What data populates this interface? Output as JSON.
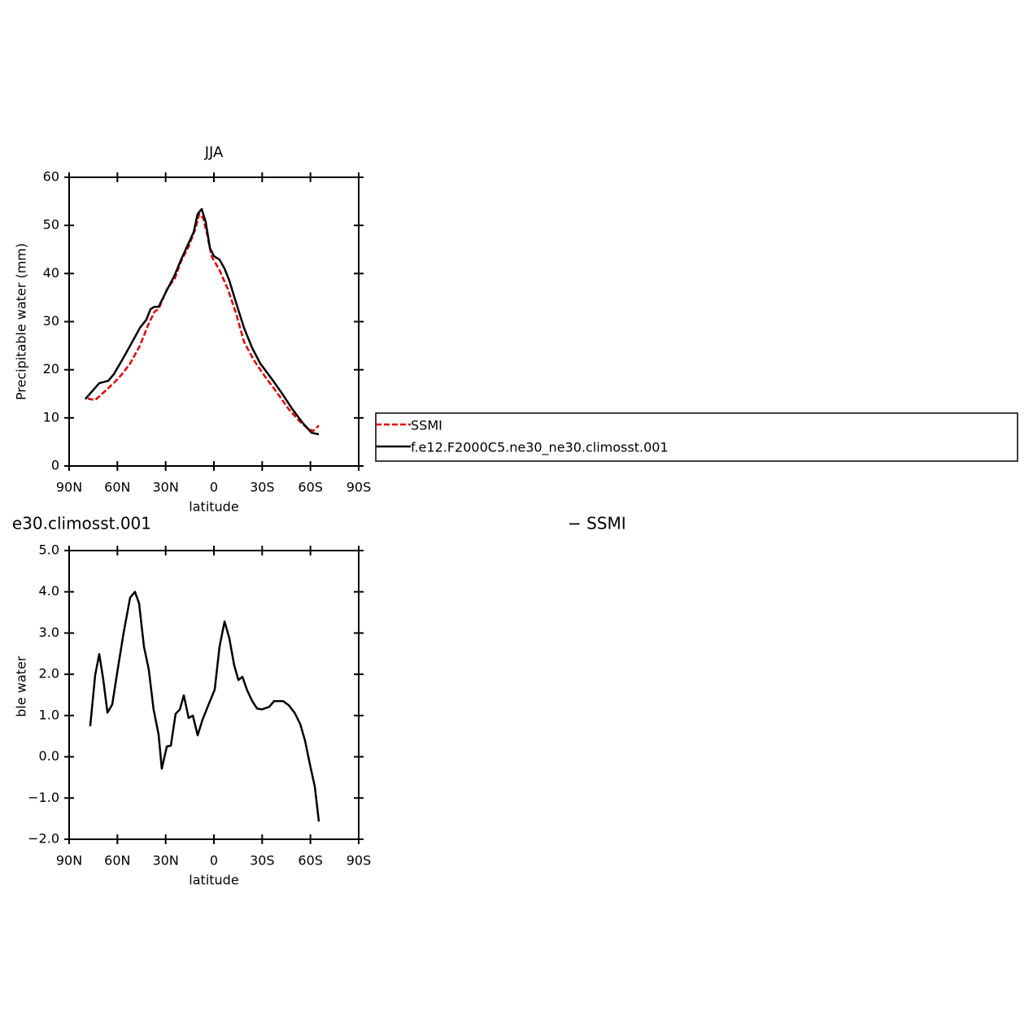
{
  "chart_data": [
    {
      "type": "line",
      "title": "JJA",
      "xlabel": "latitude",
      "ylabel": "Precipitable water (mm)",
      "xlim": [
        90,
        -90
      ],
      "xticks": [
        {
          "value": 90,
          "label": "90N"
        },
        {
          "value": 60,
          "label": "60N"
        },
        {
          "value": 30,
          "label": "30N"
        },
        0,
        {
          "value": -30,
          "label": "30S"
        },
        {
          "value": -60,
          "label": "60S"
        },
        {
          "value": -90,
          "label": "90S"
        }
      ],
      "ylim": [
        0,
        60
      ],
      "yticks": [
        0,
        10,
        20,
        30,
        40,
        50,
        60
      ],
      "grid": false,
      "legend": "right",
      "series": [
        {
          "name": "SSMI",
          "color": "#e00000",
          "dash": "dashed",
          "x": [
            78.4,
            73.8,
            67.2,
            61.2,
            57.1,
            52.1,
            46.0,
            41.0,
            36.9,
            34.4,
            29.3,
            24.3,
            20.2,
            15.7,
            11.6,
            9.1,
            6.6,
            4.0,
            1.5,
            -3.5,
            -8.6,
            -13.7,
            -18.7,
            -24.8,
            -31.3,
            -38.9,
            -46.5,
            -54.1,
            -59.1,
            -61.7,
            -65.2
          ],
          "values": [
            14.0,
            13.7,
            15.7,
            17.6,
            19.1,
            21.3,
            25.0,
            29.2,
            32.1,
            32.6,
            36.7,
            39.0,
            42.7,
            45.6,
            49.2,
            52.4,
            51.5,
            47.8,
            43.6,
            40.7,
            36.8,
            31.8,
            25.8,
            22.0,
            18.8,
            15.4,
            11.8,
            9.0,
            7.6,
            7.3,
            8.4
          ]
        },
        {
          "name": "f.e12.F2000C5.ne30_ne30.climosst.001",
          "color": "#000000",
          "dash": "solid",
          "x": [
            80.0,
            71.3,
            65.7,
            62.2,
            57.1,
            52.1,
            46.0,
            42.0,
            39.4,
            36.9,
            34.4,
            29.3,
            24.3,
            20.7,
            16.7,
            12.6,
            10.1,
            7.6,
            5.1,
            2.5,
            0,
            -3.5,
            -6.6,
            -9.6,
            -13.7,
            -18.7,
            -23.8,
            -28.8,
            -36.4,
            -42.5,
            -49.0,
            -55.1,
            -60.7,
            -65.2
          ],
          "values": [
            13.9,
            17.2,
            17.7,
            19.1,
            22.0,
            25.0,
            28.7,
            30.4,
            32.6,
            33.1,
            33.1,
            36.5,
            39.7,
            42.7,
            45.6,
            48.6,
            52.4,
            53.4,
            50.7,
            45.3,
            43.6,
            42.9,
            41.0,
            38.5,
            34.0,
            28.7,
            24.5,
            21.3,
            17.9,
            15.0,
            11.7,
            9.0,
            6.9,
            6.6
          ]
        }
      ]
    },
    {
      "type": "line",
      "title_left": "e30.climosst.001",
      "title_right": "− SSMI",
      "xlabel": "latitude",
      "ylabel": "Precipitable water (mm)",
      "xlim": [
        90,
        -90
      ],
      "xticks": [
        {
          "value": 90,
          "label": "90N"
        },
        {
          "value": 60,
          "label": "60N"
        },
        {
          "value": 30,
          "label": "30N"
        },
        0,
        {
          "value": -30,
          "label": "30S"
        },
        {
          "value": -60,
          "label": "60S"
        },
        {
          "value": -90,
          "label": "90S"
        }
      ],
      "ylim": [
        -2,
        5
      ],
      "yticks": [
        {
          "value": -2,
          "label": "−2.0"
        },
        {
          "value": -1,
          "label": "−1.0"
        },
        {
          "value": 0,
          "label": "0.0"
        },
        {
          "value": 1,
          "label": "1.0"
        },
        {
          "value": 2,
          "label": "2.0"
        },
        {
          "value": 3,
          "label": "3.0"
        },
        {
          "value": 4,
          "label": "4.0"
        },
        {
          "value": 5,
          "label": "5.0"
        }
      ],
      "grid": false,
      "series": [
        {
          "color": "#000000",
          "dash": "solid",
          "x": [
            76.9,
            73.8,
            71.3,
            68.8,
            66.2,
            63.2,
            59.7,
            56.1,
            52.1,
            49.1,
            46.5,
            43.5,
            40.5,
            37.5,
            34.4,
            32.4,
            29.3,
            26.8,
            23.8,
            21.2,
            18.7,
            15.7,
            13.1,
            10.1,
            7.1,
            3.5,
            -0.5,
            -3.5,
            -6.6,
            -9.6,
            -12.6,
            -15.2,
            -17.7,
            -20.7,
            -23.8,
            -26.8,
            -29.8,
            -34.4,
            -37.4,
            -43.0,
            -46.5,
            -50.1,
            -53.6,
            -56.6,
            -59.7,
            -62.7,
            -65.2
          ],
          "values": [
            0.74,
            1.98,
            2.49,
            1.88,
            1.07,
            1.27,
            2.14,
            3.01,
            3.86,
            4.0,
            3.72,
            2.67,
            2.12,
            1.15,
            0.54,
            -0.29,
            0.25,
            0.27,
            1.04,
            1.15,
            1.49,
            0.94,
            1.0,
            0.52,
            0.9,
            1.25,
            1.63,
            2.67,
            3.28,
            2.87,
            2.22,
            1.86,
            1.94,
            1.61,
            1.35,
            1.17,
            1.15,
            1.21,
            1.35,
            1.35,
            1.25,
            1.07,
            0.8,
            0.4,
            -0.19,
            -0.72,
            -1.57
          ]
        }
      ]
    }
  ]
}
